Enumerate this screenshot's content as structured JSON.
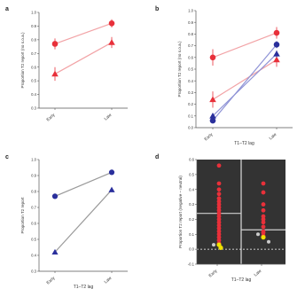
{
  "colors": {
    "red": "#e8303a",
    "red_line": "#f2a3a6",
    "blue": "#2a2f9c",
    "blue_line": "#8f93d6",
    "gray_line": "#9a9a9a",
    "dark_bg": "#333333",
    "divider": "#d0d0d0",
    "yellow": "#f0e000",
    "axis": "#555555"
  },
  "chart_data": [
    {
      "panel": "a",
      "type": "line",
      "categories": [
        "Early",
        "Late"
      ],
      "ylabel": "Proportion T2 report (no s.o.a.)",
      "xlabel": "",
      "ylim": [
        0.3,
        1.0
      ],
      "yticks": [
        "0.3",
        "0.4",
        "0.5",
        "0.6",
        "0.7",
        "0.8",
        "0.9",
        "1.0"
      ],
      "series": [
        {
          "marker": "circle",
          "color": "red",
          "values": [
            0.77,
            0.92
          ],
          "err": [
            0.04,
            0.03
          ]
        },
        {
          "marker": "triangle",
          "color": "red",
          "values": [
            0.55,
            0.78
          ],
          "err": [
            0.05,
            0.04
          ]
        }
      ]
    },
    {
      "panel": "b",
      "type": "line",
      "categories": [
        "Early",
        "Late"
      ],
      "ylabel": "Proportion T2 report (no s.o.a.)",
      "xlabel": "T1–T2 lag",
      "ylim": [
        0.0,
        1.0
      ],
      "yticks": [
        "0.0",
        "0.1",
        "0.2",
        "0.3",
        "0.4",
        "0.5",
        "0.6",
        "0.7",
        "0.8",
        "0.9",
        "1.0"
      ],
      "series": [
        {
          "marker": "circle",
          "color": "red",
          "values": [
            0.6,
            0.81
          ],
          "err": [
            0.07,
            0.05
          ]
        },
        {
          "marker": "triangle",
          "color": "red",
          "values": [
            0.24,
            0.58
          ],
          "err": [
            0.07,
            0.06
          ]
        },
        {
          "marker": "circle",
          "color": "blue",
          "values": [
            0.06,
            0.71
          ],
          "err": [
            0.02,
            0.03
          ]
        },
        {
          "marker": "triangle",
          "color": "blue",
          "values": [
            0.1,
            0.63
          ],
          "err": [
            0.02,
            0.03
          ]
        }
      ]
    },
    {
      "panel": "c",
      "type": "line",
      "categories": [
        "Early",
        "Late"
      ],
      "ylabel": "Proportion T2 report",
      "xlabel": "T1–T2 lag",
      "ylim": [
        0.3,
        1.0
      ],
      "yticks": [
        "0.3",
        "0.4",
        "0.5",
        "0.6",
        "0.7",
        "0.8",
        "0.9",
        "1.0"
      ],
      "series": [
        {
          "marker": "circle",
          "color": "blue",
          "values": [
            0.77,
            0.92
          ]
        },
        {
          "marker": "triangle",
          "color": "blue",
          "values": [
            0.42,
            0.81
          ]
        }
      ]
    },
    {
      "panel": "d",
      "type": "scatter",
      "categories": [
        "Early",
        "Late"
      ],
      "ylabel": "Proportion T2 report (negative – neutral)",
      "xlabel": "T1–T2 lag",
      "ylim": [
        -0.1,
        0.6
      ],
      "yticks": [
        "-0.1",
        "0.0",
        "0.1",
        "0.2",
        "0.3",
        "0.4",
        "0.5",
        "0.6"
      ],
      "groups": [
        {
          "category": "Early",
          "red_points": [
            0.56,
            0.44,
            0.4,
            0.37,
            0.34,
            0.32,
            0.3,
            0.28,
            0.26,
            0.24,
            0.22,
            0.2,
            0.18,
            0.16,
            0.14,
            0.12,
            0.1,
            0.08,
            0.06,
            0.04
          ],
          "mean_line": 0.24,
          "yellow_points": [
            0.03,
            0.01
          ],
          "gray_points": [
            0.03
          ]
        },
        {
          "category": "Late",
          "red_points": [
            0.44,
            0.38,
            0.3,
            0.26,
            0.22,
            0.2,
            0.18,
            0.15,
            0.12,
            0.11,
            0.09
          ],
          "mean_line": 0.13,
          "yellow_points": [
            0.08
          ],
          "gray_points": [
            0.1,
            0.05
          ]
        }
      ]
    }
  ]
}
